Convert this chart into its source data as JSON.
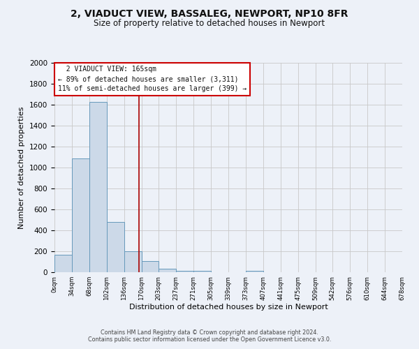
{
  "title": "2, VIADUCT VIEW, BASSALEG, NEWPORT, NP10 8FR",
  "subtitle": "Size of property relative to detached houses in Newport",
  "xlabel": "Distribution of detached houses by size in Newport",
  "ylabel": "Number of detached properties",
  "bar_color": "#ccd9e8",
  "bar_edge_color": "#6699bb",
  "background_color": "#edf1f8",
  "grid_color": "#c8c8c8",
  "vline_x": 165,
  "vline_color": "#aa0000",
  "bin_edges": [
    0,
    34,
    68,
    102,
    136,
    170,
    203,
    237,
    271,
    305,
    339,
    373,
    407,
    441,
    475,
    509,
    542,
    576,
    610,
    644,
    678
  ],
  "bin_counts": [
    170,
    1090,
    1630,
    480,
    200,
    105,
    35,
    15,
    13,
    0,
    0,
    13,
    0,
    0,
    0,
    0,
    0,
    0,
    0,
    0
  ],
  "tick_labels": [
    "0sqm",
    "34sqm",
    "68sqm",
    "102sqm",
    "136sqm",
    "170sqm",
    "203sqm",
    "237sqm",
    "271sqm",
    "305sqm",
    "339sqm",
    "373sqm",
    "407sqm",
    "441sqm",
    "475sqm",
    "509sqm",
    "542sqm",
    "576sqm",
    "610sqm",
    "644sqm",
    "678sqm"
  ],
  "annotation_title": "2 VIADUCT VIEW: 165sqm",
  "annotation_line1": "← 89% of detached houses are smaller (3,311)",
  "annotation_line2": "11% of semi-detached houses are larger (399) →",
  "annotation_box_color": "#ffffff",
  "annotation_box_edge_color": "#cc0000",
  "ylim": [
    0,
    2000
  ],
  "xlim": [
    0,
    678
  ],
  "yticks": [
    0,
    200,
    400,
    600,
    800,
    1000,
    1200,
    1400,
    1600,
    1800,
    2000
  ],
  "footer1": "Contains HM Land Registry data © Crown copyright and database right 2024.",
  "footer2": "Contains public sector information licensed under the Open Government Licence v3.0."
}
